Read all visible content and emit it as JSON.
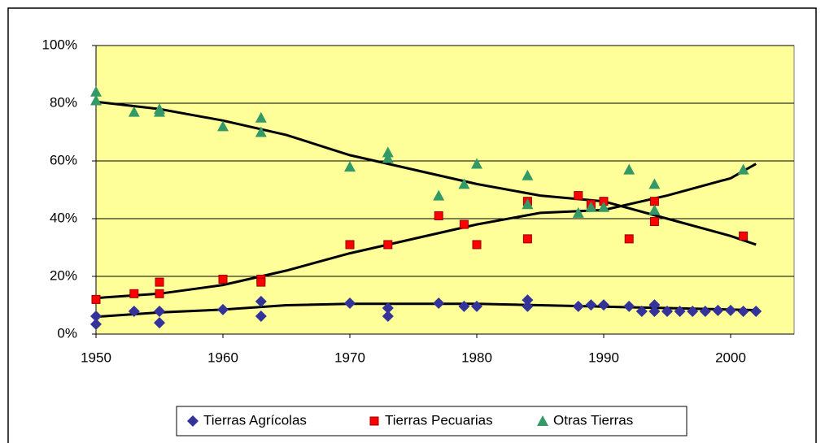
{
  "chart_data": {
    "type": "scatter",
    "xlim": [
      1950,
      2005
    ],
    "xticks": [
      1950,
      1960,
      1970,
      1980,
      1990,
      2000
    ],
    "ylim": [
      0,
      100
    ],
    "yticks": [
      {
        "value": 0,
        "label": "0%"
      },
      {
        "value": 20,
        "label": "20%"
      },
      {
        "value": 40,
        "label": "40%"
      },
      {
        "value": 60,
        "label": "60%"
      },
      {
        "value": 80,
        "label": "80%"
      },
      {
        "value": 100,
        "label": "100%"
      }
    ],
    "grid": true,
    "legend": "bottom",
    "series": [
      {
        "name": "Tierras Agrícolas",
        "color": "#333399",
        "marker": "diamond",
        "x": [
          1950,
          1950,
          1953,
          1955,
          1955,
          1960,
          1963,
          1963,
          1970,
          1973,
          1973,
          1977,
          1979,
          1980,
          1984,
          1984,
          1988,
          1989,
          1990,
          1992,
          1993,
          1994,
          1994,
          1995,
          1996,
          1997,
          1998,
          1999,
          2000,
          2001,
          2002
        ],
        "values": [
          6.2,
          3.4,
          7.9,
          7.9,
          3.9,
          8.5,
          11.3,
          6.2,
          10.7,
          9.0,
          6.2,
          10.7,
          9.6,
          9.6,
          11.8,
          9.6,
          9.6,
          10.1,
          10.1,
          9.6,
          7.9,
          10.1,
          7.9,
          7.9,
          7.9,
          7.9,
          7.9,
          8.2,
          8.2,
          7.9,
          7.9
        ],
        "trend": {
          "x": [
            1950,
            1955,
            1960,
            1965,
            1970,
            1975,
            1980,
            1985,
            1990,
            1995,
            2000,
            2002
          ],
          "values": [
            6,
            7.5,
            8.5,
            10,
            10.5,
            10.5,
            10.5,
            10,
            9.5,
            9,
            8.5,
            8.3
          ]
        }
      },
      {
        "name": "Tierras Pecuarias",
        "color": "#ff0000",
        "marker": "square",
        "x": [
          1950,
          1953,
          1955,
          1955,
          1960,
          1963,
          1963,
          1970,
          1973,
          1977,
          1979,
          1980,
          1984,
          1984,
          1988,
          1989,
          1990,
          1992,
          1994,
          1994,
          2001
        ],
        "values": [
          12,
          14,
          18,
          14,
          19,
          19,
          18,
          31,
          31,
          41,
          38,
          31,
          33,
          46,
          48,
          45,
          46,
          33,
          46,
          39,
          34
        ],
        "trend": {
          "x": [
            1950,
            1955,
            1960,
            1965,
            1970,
            1975,
            1980,
            1985,
            1990,
            1995,
            2000,
            2002
          ],
          "values": [
            12.5,
            14,
            17,
            22,
            28,
            33,
            38,
            42,
            43,
            48,
            54,
            59
          ]
        }
      },
      {
        "name": "Otras Tierras",
        "color": "#339966",
        "marker": "triangle",
        "x": [
          1950,
          1950,
          1953,
          1955,
          1955,
          1960,
          1963,
          1963,
          1970,
          1973,
          1973,
          1977,
          1979,
          1980,
          1984,
          1984,
          1988,
          1989,
          1990,
          1992,
          1994,
          1994,
          2001
        ],
        "values": [
          84,
          81,
          77,
          78,
          77,
          72,
          75,
          70,
          58,
          63,
          61,
          48,
          52,
          59,
          55,
          45,
          42,
          44,
          44,
          57,
          52,
          43,
          57
        ],
        "trend": {
          "x": [
            1950,
            1955,
            1960,
            1965,
            1970,
            1975,
            1980,
            1985,
            1990,
            1995,
            2000,
            2002
          ],
          "values": [
            80.5,
            78,
            74,
            69,
            62,
            57,
            52,
            48,
            46,
            40,
            34,
            31
          ]
        }
      }
    ]
  }
}
